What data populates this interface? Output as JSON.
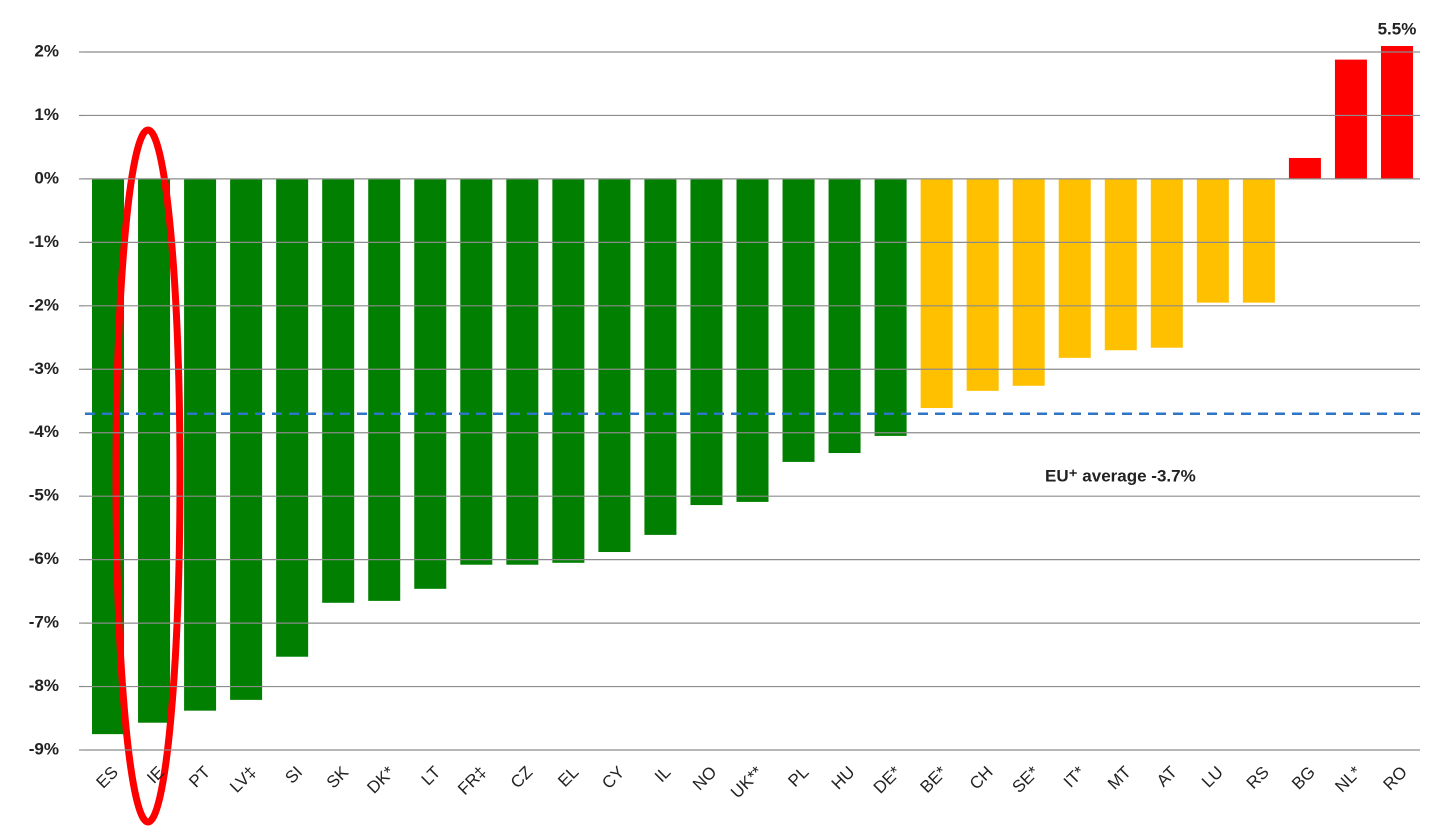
{
  "chart_data": {
    "type": "bar",
    "categories": [
      "ES",
      "IE",
      "PT",
      "LV‡",
      "SI",
      "SK",
      "DK*",
      "LT",
      "FR‡",
      "CZ",
      "EL",
      "CY",
      "IL",
      "NO",
      "UK**",
      "PL",
      "HU",
      "DE*",
      "BE*",
      "CH",
      "SE*",
      "IT*",
      "MT",
      "AT",
      "LU",
      "RS",
      "BG",
      "NL*",
      "RO"
    ],
    "values": [
      -8.75,
      -8.57,
      -8.38,
      -8.21,
      -7.53,
      -6.68,
      -6.65,
      -6.46,
      -6.08,
      -6.08,
      -6.05,
      -5.88,
      -5.61,
      -5.14,
      -5.09,
      -4.46,
      -4.32,
      -4.05,
      -3.61,
      -3.34,
      -3.26,
      -2.82,
      -2.7,
      -2.66,
      -1.95,
      -1.95,
      0.33,
      1.88,
      5.5
    ],
    "value_labels": [
      null,
      null,
      null,
      null,
      null,
      null,
      null,
      null,
      null,
      null,
      null,
      null,
      null,
      null,
      null,
      null,
      null,
      null,
      null,
      null,
      null,
      null,
      null,
      null,
      null,
      null,
      null,
      null,
      "5.5%"
    ],
    "colors": [
      "#007f00",
      "#007f00",
      "#007f00",
      "#007f00",
      "#007f00",
      "#007f00",
      "#007f00",
      "#007f00",
      "#007f00",
      "#007f00",
      "#007f00",
      "#007f00",
      "#007f00",
      "#007f00",
      "#007f00",
      "#007f00",
      "#007f00",
      "#007f00",
      "#ffc000",
      "#ffc000",
      "#ffc000",
      "#ffc000",
      "#ffc000",
      "#ffc000",
      "#ffc000",
      "#ffc000",
      "#ff0000",
      "#ff0000",
      "#ff0000"
    ],
    "ylim": [
      -9,
      2
    ],
    "yticks": [
      {
        "value": 2,
        "label": "2%"
      },
      {
        "value": 1,
        "label": "1%"
      },
      {
        "value": 0,
        "label": "0%"
      },
      {
        "value": -1,
        "label": "-1%"
      },
      {
        "value": -2,
        "label": "-2%"
      },
      {
        "value": -3,
        "label": "-3%"
      },
      {
        "value": -4,
        "label": "-4%"
      },
      {
        "value": -5,
        "label": "-5%"
      },
      {
        "value": -6,
        "label": "-6%"
      },
      {
        "value": -7,
        "label": "-7%"
      },
      {
        "value": -8,
        "label": "-8%"
      },
      {
        "value": -9,
        "label": "-9%"
      }
    ],
    "grid": true,
    "average": -3.7,
    "average_color": "#2e75c8",
    "average_label": "EU⁺ average  -3.7%"
  }
}
